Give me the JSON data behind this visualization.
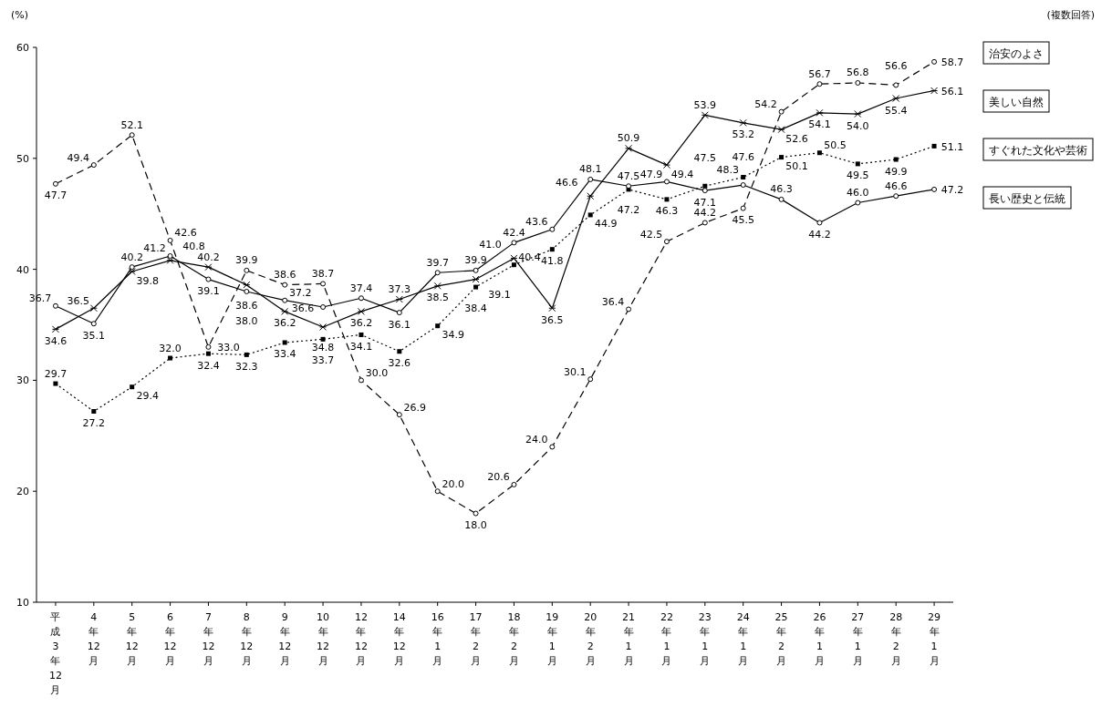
{
  "chart_data": {
    "type": "line",
    "categories": [
      "平成3年12月",
      "4年12月",
      "5年12月",
      "6年12月",
      "7年12月",
      "8年12月",
      "9年12月",
      "10年12月",
      "12年12月",
      "14年12月",
      "16年1月",
      "17年2月",
      "18年2月",
      "19年1月",
      "20年2月",
      "21年1月",
      "22年1月",
      "23年1月",
      "24年1月",
      "25年2月",
      "26年1月",
      "27年1月",
      "28年2月",
      "29年1月"
    ],
    "series": [
      {
        "name": "治安のよさ",
        "color": "#000000",
        "line_style": "dashed",
        "marker": "circle",
        "values": [
          47.7,
          49.4,
          52.1,
          42.6,
          33.0,
          39.9,
          38.6,
          38.7,
          30.0,
          26.9,
          20.0,
          18.0,
          20.6,
          24.0,
          30.1,
          36.4,
          42.5,
          44.2,
          45.5,
          54.2,
          56.7,
          56.8,
          56.6,
          58.7
        ],
        "value_labels": [
          "47.7",
          "49.4",
          "52.1",
          "42.6",
          "33.0",
          "39.9",
          "38.6",
          "38.7",
          "30.0",
          "26.9",
          "20.0",
          "18.0",
          "20.6",
          "24.0",
          "30.1",
          "36.4",
          "42.5",
          "44.2",
          "45.5",
          "54.2",
          "56.7",
          "56.8",
          "56.6",
          "58.7"
        ]
      },
      {
        "name": "美しい自然",
        "color": "#000000",
        "line_style": "solid",
        "marker": "cross",
        "values": [
          34.6,
          36.5,
          39.8,
          40.8,
          40.2,
          38.6,
          36.2,
          34.8,
          36.2,
          37.3,
          38.5,
          39.1,
          41.0,
          36.5,
          46.6,
          50.9,
          49.4,
          53.9,
          53.2,
          52.6,
          54.1,
          54.0,
          55.4,
          56.1
        ],
        "value_labels": [
          "34.6",
          "36.5",
          "39.8",
          "40.8",
          "40.2",
          "38.6",
          "36.2",
          "34.8",
          "36.2",
          "37.3",
          "38.5",
          "39.1",
          "41.0",
          "36.5",
          "46.6",
          "50.9",
          "49.4",
          "53.9",
          "53.2",
          "52.6",
          "54.1",
          "54.0",
          "55.4",
          "56.1"
        ]
      },
      {
        "name": "すぐれた文化や芸術",
        "color": "#000000",
        "line_style": "dotted",
        "marker": "square",
        "values": [
          29.7,
          27.2,
          29.4,
          32.0,
          32.4,
          32.3,
          33.4,
          33.7,
          34.1,
          32.6,
          34.9,
          38.4,
          40.4,
          41.8,
          44.9,
          47.2,
          46.3,
          47.5,
          48.3,
          50.1,
          50.5,
          49.5,
          49.9,
          51.1
        ],
        "value_labels": [
          "29.7",
          "27.2",
          "29.4",
          "32.0",
          "32.4",
          "32.3",
          "33.4",
          "33.7",
          "34.1",
          "32.6",
          "34.9",
          "38.4",
          "40.4",
          "41.8",
          "44.9",
          "47.2",
          "46.3",
          "47.5",
          "48.3",
          "50.1",
          "50.5",
          "49.5",
          "49.9",
          "51.1"
        ]
      },
      {
        "name": "長い歴史と伝統",
        "color": "#000000",
        "line_style": "solid",
        "marker": "circle",
        "values": [
          36.7,
          35.1,
          40.2,
          41.2,
          39.1,
          38.0,
          37.2,
          36.6,
          37.4,
          36.1,
          39.7,
          39.9,
          42.4,
          43.6,
          48.1,
          47.5,
          47.9,
          47.1,
          47.6,
          46.3,
          44.2,
          46.0,
          46.6,
          47.2
        ],
        "value_labels": [
          "36.7",
          "35.1",
          "40.2",
          "41.2",
          "39.1",
          "38.0",
          "37.2",
          "36.6",
          "37.4",
          "36.1",
          "39.7",
          "39.9",
          "42.4",
          "43.6",
          "48.1",
          "47.5",
          "47.9",
          "47.1",
          "47.6",
          "46.3",
          "44.2",
          "46.0",
          "46.6",
          "47.2"
        ]
      }
    ],
    "ylim": [
      10,
      60
    ],
    "yticks": [
      10,
      20,
      30,
      40,
      50,
      60
    ],
    "grid": false,
    "legend": "right",
    "annotations": [
      "(%)",
      "(複数回答)"
    ]
  }
}
